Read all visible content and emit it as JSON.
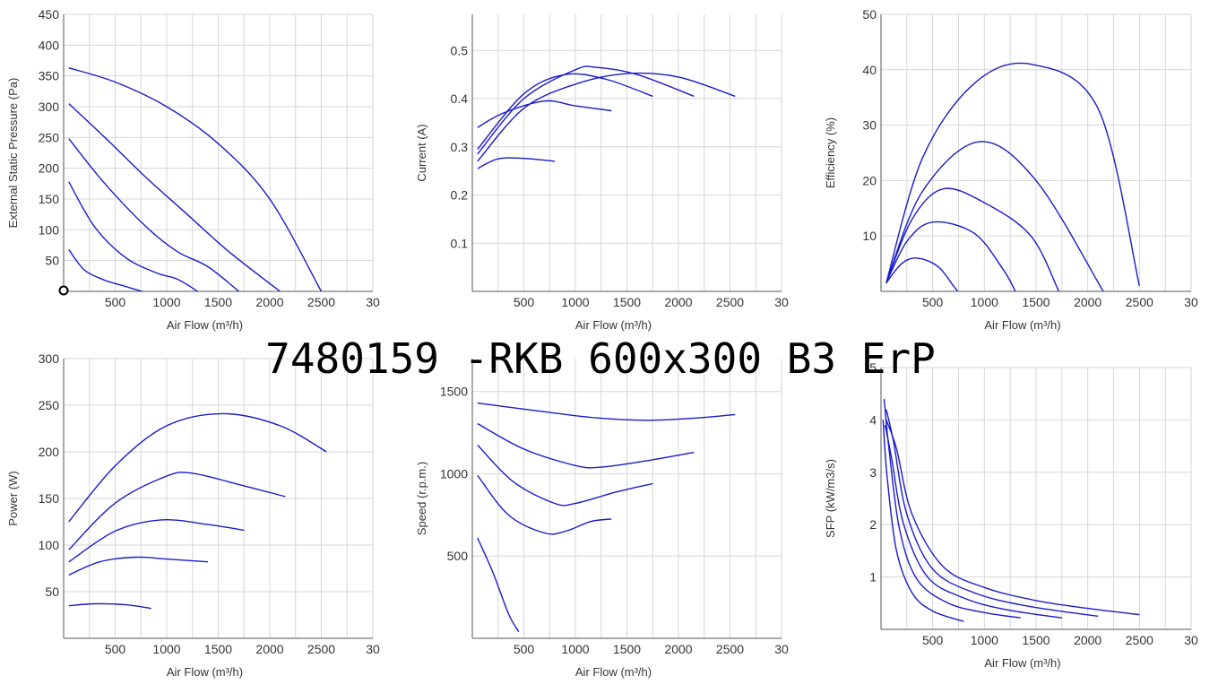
{
  "title": "7480159 -RKB 600x300 B3 ErP",
  "colors": {
    "curve": "#1a1acc",
    "grid": "#d6d6d6",
    "axis": "#555555"
  },
  "chart_data": [
    {
      "id": "pressure",
      "type": "line",
      "xlabel": "Air Flow (m³/h)",
      "ylabel": "External Static Pressure (Pa)",
      "xlim": [
        0,
        3000
      ],
      "ylim": [
        0,
        450
      ],
      "xticks": [
        "500",
        "1000",
        "1500",
        "2000",
        "2500",
        "30"
      ],
      "yticks": [
        "50",
        "100",
        "150",
        "200",
        "250",
        "300",
        "350",
        "400",
        "450"
      ],
      "ytick_values": [
        50,
        100,
        150,
        200,
        250,
        300,
        350,
        400,
        450
      ],
      "marker": {
        "x": 0,
        "y": 0
      },
      "series": [
        {
          "x": [
            50,
            500,
            1000,
            1500,
            2000,
            2500
          ],
          "y": [
            363,
            340,
            300,
            240,
            150,
            0
          ]
        },
        {
          "x": [
            50,
            400,
            800,
            1200,
            1600,
            2100
          ],
          "y": [
            305,
            250,
            185,
            125,
            65,
            0
          ]
        },
        {
          "x": [
            50,
            400,
            800,
            1100,
            1400,
            1700
          ],
          "y": [
            248,
            175,
            105,
            65,
            40,
            0
          ]
        },
        {
          "x": [
            50,
            300,
            600,
            900,
            1100,
            1300
          ],
          "y": [
            178,
            105,
            55,
            30,
            20,
            0
          ]
        },
        {
          "x": [
            50,
            200,
            400,
            600,
            760
          ],
          "y": [
            68,
            35,
            18,
            8,
            0
          ]
        }
      ]
    },
    {
      "id": "current",
      "type": "line",
      "xlabel": "Air Flow (m³/h)",
      "ylabel": "Current (A)",
      "xlim": [
        0,
        3000
      ],
      "ylim": [
        0,
        0.575
      ],
      "xticks": [
        "500",
        "1000",
        "1500",
        "2000",
        "2500",
        "30"
      ],
      "yticks": [
        "0.1",
        "0.2",
        "0.3",
        "0.4",
        "0.5"
      ],
      "ytick_values": [
        0.1,
        0.2,
        0.3,
        0.4,
        0.5
      ],
      "series": [
        {
          "x": [
            50,
            500,
            1000,
            1500,
            2000,
            2550
          ],
          "y": [
            0.27,
            0.38,
            0.43,
            0.452,
            0.445,
            0.405
          ]
        },
        {
          "x": [
            50,
            500,
            1000,
            1200,
            1600,
            2150
          ],
          "y": [
            0.285,
            0.4,
            0.46,
            0.465,
            0.45,
            0.405
          ]
        },
        {
          "x": [
            50,
            500,
            900,
            1300,
            1750
          ],
          "y": [
            0.295,
            0.41,
            0.45,
            0.44,
            0.405
          ]
        },
        {
          "x": [
            50,
            300,
            700,
            1000,
            1350
          ],
          "y": [
            0.34,
            0.37,
            0.395,
            0.385,
            0.375
          ]
        },
        {
          "x": [
            50,
            250,
            500,
            800
          ],
          "y": [
            0.255,
            0.275,
            0.276,
            0.27
          ]
        }
      ]
    },
    {
      "id": "efficiency",
      "type": "line",
      "xlabel": "Air Flow (m³/h)",
      "ylabel": "Efficiency (%)",
      "xlim": [
        0,
        3000
      ],
      "ylim": [
        0,
        50
      ],
      "xticks": [
        "500",
        "1000",
        "1500",
        "2000",
        "2500",
        "30"
      ],
      "yticks": [
        "10",
        "20",
        "30",
        "40",
        "50"
      ],
      "ytick_values": [
        10,
        20,
        30,
        40,
        50
      ],
      "series": [
        {
          "x": [
            50,
            400,
            900,
            1450,
            2100,
            2500
          ],
          "y": [
            1.5,
            24,
            37.5,
            41,
            33,
            1
          ]
        },
        {
          "x": [
            50,
            400,
            950,
            1500,
            2150
          ],
          "y": [
            1.5,
            18,
            27,
            20,
            0
          ]
        },
        {
          "x": [
            50,
            300,
            600,
            1000,
            1450,
            1720
          ],
          "y": [
            1.5,
            13,
            18.5,
            16,
            10,
            0
          ]
        },
        {
          "x": [
            50,
            250,
            500,
            900,
            1180,
            1300
          ],
          "y": [
            1.5,
            9,
            12.5,
            10.5,
            4,
            0
          ]
        },
        {
          "x": [
            50,
            200,
            350,
            550,
            700,
            740
          ],
          "y": [
            1.5,
            5,
            6,
            4.5,
            1,
            0
          ]
        }
      ]
    },
    {
      "id": "power",
      "type": "line",
      "xlabel": "Air Flow (m³/h)",
      "ylabel": "Power (W)",
      "xlim": [
        0,
        3000
      ],
      "ylim": [
        0,
        300
      ],
      "xticks": [
        "500",
        "1000",
        "1500",
        "2000",
        "2500",
        "30"
      ],
      "yticks": [
        "50",
        "100",
        "150",
        "200",
        "250",
        "300"
      ],
      "ytick_values": [
        50,
        100,
        150,
        200,
        250,
        300
      ],
      "series": [
        {
          "x": [
            50,
            500,
            1000,
            1550,
            2100,
            2550
          ],
          "y": [
            125,
            185,
            228,
            241,
            228,
            200
          ]
        },
        {
          "x": [
            50,
            500,
            1000,
            1250,
            1700,
            2150
          ],
          "y": [
            95,
            145,
            174,
            177,
            165,
            152
          ]
        },
        {
          "x": [
            50,
            500,
            950,
            1400,
            1750
          ],
          "y": [
            82,
            115,
            127,
            122,
            116
          ]
        },
        {
          "x": [
            50,
            350,
            700,
            1000,
            1400
          ],
          "y": [
            68,
            82,
            87,
            85,
            82
          ]
        },
        {
          "x": [
            50,
            300,
            600,
            850
          ],
          "y": [
            35,
            37,
            36,
            32
          ]
        }
      ]
    },
    {
      "id": "speed",
      "type": "line",
      "xlabel": "Air Flow (m³/h)",
      "ylabel": "Speed (r.p.m.)",
      "xlim": [
        0,
        3000
      ],
      "ylim": [
        0,
        1700
      ],
      "xticks": [
        "500",
        "1000",
        "1500",
        "2000",
        "2500",
        "30"
      ],
      "yticks": [
        "500",
        "1000",
        "1500"
      ],
      "ytick_values": [
        500,
        1000,
        1500
      ],
      "series": [
        {
          "x": [
            50,
            600,
            1200,
            1700,
            2200,
            2550
          ],
          "y": [
            1430,
            1385,
            1340,
            1325,
            1340,
            1360
          ]
        },
        {
          "x": [
            50,
            500,
            1000,
            1250,
            1700,
            2150
          ],
          "y": [
            1305,
            1150,
            1050,
            1040,
            1080,
            1130
          ]
        },
        {
          "x": [
            50,
            400,
            800,
            1000,
            1400,
            1750
          ],
          "y": [
            1175,
            950,
            820,
            820,
            890,
            940
          ]
        },
        {
          "x": [
            50,
            350,
            700,
            900,
            1150,
            1350
          ],
          "y": [
            990,
            750,
            640,
            650,
            710,
            725
          ]
        },
        {
          "x": [
            50,
            200,
            350,
            450
          ],
          "y": [
            610,
            400,
            150,
            40
          ]
        }
      ]
    },
    {
      "id": "sfp",
      "type": "line",
      "xlabel": "Air Flow (m³/h)",
      "ylabel": "SFP (kW/m3/s)",
      "xlim": [
        0,
        3000
      ],
      "ylim": [
        0,
        5
      ],
      "xticks": [
        "500",
        "1000",
        "1500",
        "2000",
        "2500",
        "30"
      ],
      "yticks": [
        "1",
        "2",
        "3",
        "4",
        "5"
      ],
      "ytick_values": [
        1,
        2,
        3,
        4,
        5
      ],
      "series": [
        {
          "x": [
            50,
            150,
            300,
            600,
            1000,
            1500,
            2000,
            2500
          ],
          "y": [
            4.0,
            3.45,
            2.2,
            1.2,
            0.8,
            0.55,
            0.4,
            0.28
          ]
        },
        {
          "x": [
            50,
            120,
            250,
            500,
            900,
            1400,
            2100
          ],
          "y": [
            4.2,
            3.6,
            2.2,
            1.15,
            0.7,
            0.45,
            0.25
          ]
        },
        {
          "x": [
            40,
            100,
            220,
            450,
            800,
            1200,
            1750
          ],
          "y": [
            3.9,
            3.3,
            2.0,
            1.0,
            0.6,
            0.38,
            0.22
          ]
        },
        {
          "x": [
            30,
            80,
            180,
            350,
            650,
            1000,
            1350
          ],
          "y": [
            4.4,
            3.4,
            1.9,
            0.95,
            0.5,
            0.32,
            0.22
          ]
        },
        {
          "x": [
            20,
            60,
            150,
            300,
            500,
            800
          ],
          "y": [
            4.0,
            2.9,
            1.5,
            0.7,
            0.35,
            0.15
          ]
        }
      ]
    }
  ]
}
